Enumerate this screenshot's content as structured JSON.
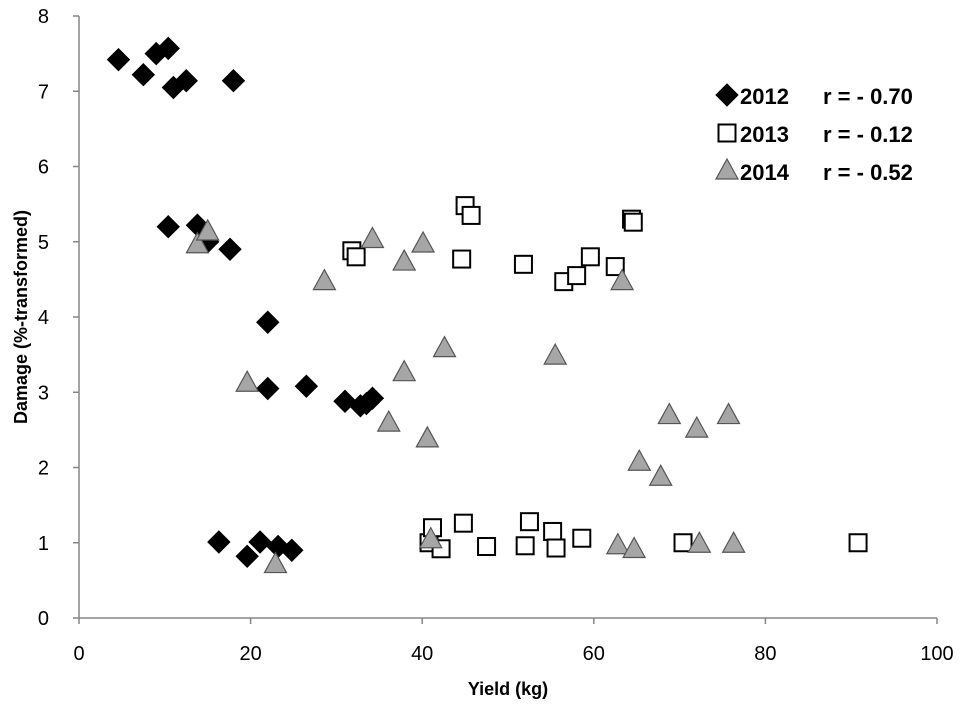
{
  "chart_data": {
    "type": "scatter",
    "title": "",
    "xlabel": "Yield (kg)",
    "ylabel": "Damage (%-transformed)",
    "xlim": [
      0,
      100
    ],
    "ylim": [
      0,
      8
    ],
    "x_ticks": [
      0,
      20,
      40,
      60,
      80,
      100
    ],
    "y_ticks": [
      0,
      1,
      2,
      3,
      4,
      5,
      6,
      7,
      8
    ],
    "grid": false,
    "legend_position": "top-right",
    "series": [
      {
        "name": "2012",
        "annotation": "r = - 0.70",
        "marker": "diamond",
        "color": "#000000",
        "points": [
          [
            4.6,
            7.42
          ],
          [
            7.5,
            7.22
          ],
          [
            9,
            7.5
          ],
          [
            10.4,
            7.57
          ],
          [
            11,
            7.05
          ],
          [
            12.5,
            7.14
          ],
          [
            18,
            7.14
          ],
          [
            10.4,
            5.2
          ],
          [
            13.8,
            5.22
          ],
          [
            15,
            5.0
          ],
          [
            17.6,
            4.9
          ],
          [
            22,
            3.93
          ],
          [
            22,
            3.05
          ],
          [
            26.5,
            3.08
          ],
          [
            31,
            2.88
          ],
          [
            32.8,
            2.82
          ],
          [
            33.5,
            2.85
          ],
          [
            34.2,
            2.92
          ],
          [
            16.3,
            1.01
          ],
          [
            19.6,
            0.82
          ],
          [
            21.1,
            1.01
          ],
          [
            23.2,
            0.95
          ],
          [
            24.8,
            0.9
          ]
        ]
      },
      {
        "name": "2013",
        "annotation": "r = - 0.12",
        "marker": "square",
        "color": "#ffffff",
        "points": [
          [
            31.8,
            4.88
          ],
          [
            32.3,
            4.8
          ],
          [
            44.6,
            4.77
          ],
          [
            45,
            5.48
          ],
          [
            45.7,
            5.35
          ],
          [
            51.8,
            4.7
          ],
          [
            56.5,
            4.47
          ],
          [
            58,
            4.55
          ],
          [
            59.6,
            4.8
          ],
          [
            62.5,
            4.67
          ],
          [
            64.4,
            5.3
          ],
          [
            64.6,
            5.26
          ],
          [
            40.8,
            1.0
          ],
          [
            41.2,
            1.2
          ],
          [
            42.2,
            0.92
          ],
          [
            44.8,
            1.26
          ],
          [
            47.5,
            0.95
          ],
          [
            52,
            0.96
          ],
          [
            52.5,
            1.28
          ],
          [
            55.2,
            1.15
          ],
          [
            55.6,
            0.93
          ],
          [
            58.6,
            1.06
          ],
          [
            70.4,
            1.0
          ],
          [
            90.8,
            1.0
          ]
        ]
      },
      {
        "name": "2014",
        "annotation": "r = - 0.52",
        "marker": "triangle",
        "color": "#a6a6a6",
        "points": [
          [
            13.8,
            4.96
          ],
          [
            15,
            5.13
          ],
          [
            28.6,
            4.47
          ],
          [
            34.2,
            5.03
          ],
          [
            37.9,
            4.73
          ],
          [
            40.1,
            4.97
          ],
          [
            63.3,
            4.47
          ],
          [
            19.6,
            3.12
          ],
          [
            36.1,
            2.59
          ],
          [
            37.9,
            3.26
          ],
          [
            40.6,
            2.38
          ],
          [
            42.6,
            3.58
          ],
          [
            55.5,
            3.48
          ],
          [
            65.3,
            2.07
          ],
          [
            67.8,
            1.87
          ],
          [
            68.8,
            2.69
          ],
          [
            72,
            2.51
          ],
          [
            75.7,
            2.69
          ],
          [
            22.9,
            0.71
          ],
          [
            41,
            1.04
          ],
          [
            62.8,
            0.96
          ],
          [
            64.7,
            0.91
          ],
          [
            72.3,
            0.98
          ],
          [
            76.3,
            0.98
          ]
        ]
      }
    ]
  }
}
